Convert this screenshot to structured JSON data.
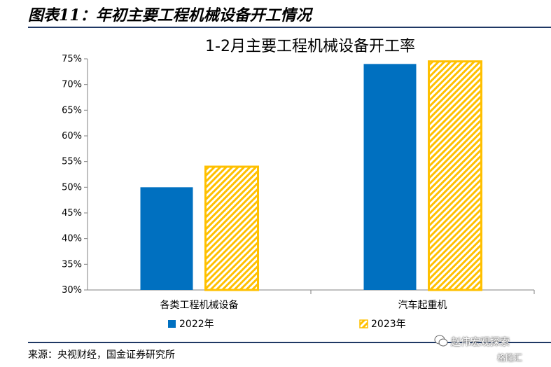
{
  "figure": {
    "title": "图表11：年初主要工程机械设备开工情况",
    "source": "来源：央视财经，国金证券研究所"
  },
  "watermark": {
    "line1": "赵伟宏观探索",
    "line2": "格隆汇"
  },
  "colors": {
    "series_2022": "#0070C0",
    "series_2023": "#FFC000",
    "rule": "#1f3864"
  },
  "chart_data": {
    "type": "bar",
    "title": "1-2月主要工程机械设备开工率",
    "categories": [
      "各类工程机械设备",
      "汽车起重机"
    ],
    "series": [
      {
        "name": "2022年",
        "values": [
          50,
          74
        ],
        "fill": "solid"
      },
      {
        "name": "2023年",
        "values": [
          54,
          74.5
        ],
        "fill": "hatched"
      }
    ],
    "ylim": [
      30,
      75
    ],
    "yticks": [
      "30%",
      "35%",
      "40%",
      "45%",
      "50%",
      "55%",
      "60%",
      "65%",
      "70%",
      "75%"
    ],
    "ytick_values": [
      30,
      35,
      40,
      45,
      50,
      55,
      60,
      65,
      70,
      75
    ],
    "xlabel": "",
    "ylabel": "",
    "grid": false,
    "legend_position": "bottom"
  }
}
